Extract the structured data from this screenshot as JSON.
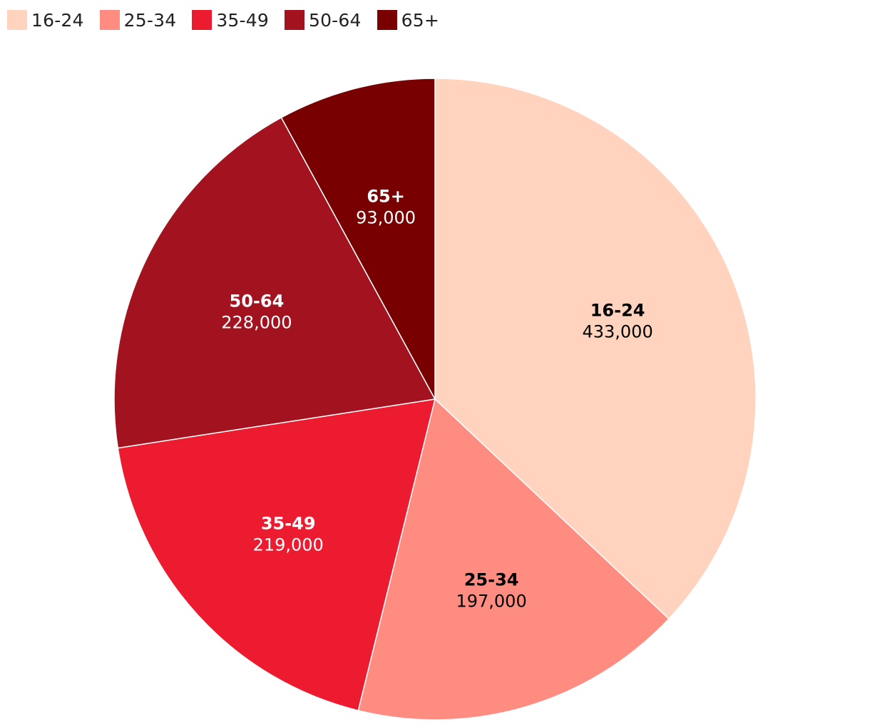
{
  "chart_data": {
    "type": "pie",
    "title": "",
    "legend_position": "top-left",
    "categories": [
      "16-24",
      "25-34",
      "35-49",
      "50-64",
      "65+"
    ],
    "values": [
      433000,
      197000,
      219000,
      228000,
      93000
    ],
    "value_labels": [
      "433,000",
      "197,000",
      "219,000",
      "228,000",
      "93,000"
    ],
    "colors": [
      "#ffd3bd",
      "#ff8c80",
      "#ec1b30",
      "#a3131f",
      "#780000"
    ],
    "label_colors": [
      "#000000",
      "#000000",
      "#ffffff",
      "#ffffff",
      "#ffffff"
    ]
  }
}
